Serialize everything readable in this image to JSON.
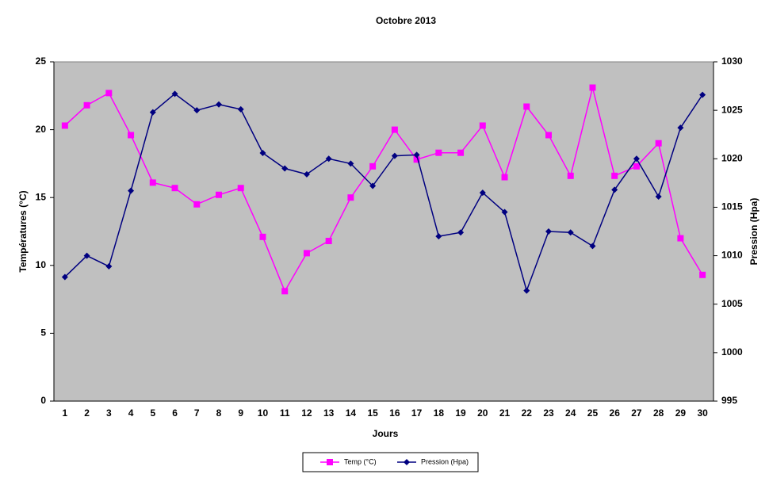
{
  "chart_data": {
    "type": "line",
    "title": "Octobre 2013",
    "x_label": "Jours",
    "y_label": "Températures (°C)",
    "y2_label": "Pression (Hpa)",
    "categories": [
      "1",
      "2",
      "3",
      "4",
      "5",
      "6",
      "7",
      "8",
      "9",
      "10",
      "11",
      "12",
      "13",
      "14",
      "15",
      "16",
      "17",
      "18",
      "19",
      "20",
      "21",
      "22",
      "23",
      "24",
      "25",
      "26",
      "27",
      "28",
      "29",
      "30"
    ],
    "series": [
      {
        "name": "Temp (°C)",
        "color": "#ff00ff",
        "marker": "square",
        "values": [
          20.3,
          21.8,
          22.7,
          19.6,
          16.1,
          15.7,
          14.5,
          15.2,
          15.7,
          12.1,
          8.1,
          10.9,
          11.8,
          15.0,
          17.3,
          20.0,
          17.8,
          18.3,
          18.3,
          20.3,
          16.5,
          21.7,
          19.6,
          16.6,
          23.1,
          16.6,
          17.3,
          19.0,
          12.0,
          9.3
        ]
      },
      {
        "name": "Pression (Hpa)",
        "color": "#000080",
        "marker": "diamond",
        "axis": "y2",
        "values": [
          1007.8,
          1010.0,
          1008.9,
          1016.7,
          1024.8,
          1026.7,
          1025.0,
          1025.6,
          1025.1,
          1020.6,
          1019.0,
          1018.4,
          1020.0,
          1019.5,
          1017.2,
          1020.3,
          1020.4,
          1012.0,
          1012.4,
          1016.5,
          1014.5,
          1006.4,
          1012.5,
          1012.4,
          1011.0,
          1016.8,
          1020.0,
          1016.1,
          1023.2,
          1026.6
        ]
      }
    ],
    "ylim": [
      0,
      25
    ],
    "yticks": [
      0,
      5,
      10,
      15,
      20,
      25
    ],
    "y2lim": [
      995,
      1030
    ],
    "y2ticks": [
      995,
      1000,
      1005,
      1010,
      1015,
      1020,
      1025,
      1030
    ],
    "grid": false,
    "legend": "bottom",
    "plot_background": "#c0c0c0"
  }
}
